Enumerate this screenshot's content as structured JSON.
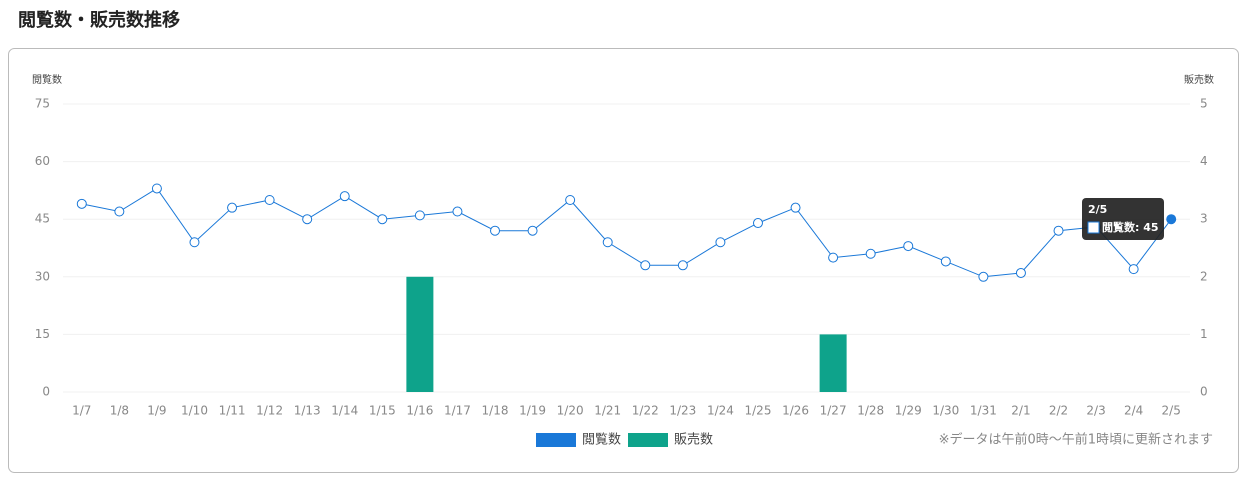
{
  "chart_data": {
    "type": "bar-line",
    "title": "閲覧数・販売数推移",
    "y_label": "閲覧数",
    "y2_label": "販売数",
    "categories": [
      "1/7",
      "1/8",
      "1/9",
      "1/10",
      "1/11",
      "1/12",
      "1/13",
      "1/14",
      "1/15",
      "1/16",
      "1/17",
      "1/18",
      "1/19",
      "1/20",
      "1/21",
      "1/22",
      "1/23",
      "1/24",
      "1/25",
      "1/26",
      "1/27",
      "1/28",
      "1/29",
      "1/30",
      "1/31",
      "2/1",
      "2/2",
      "2/3",
      "2/4",
      "2/5"
    ],
    "series": [
      {
        "name": "閲覧数",
        "type": "line",
        "color": "#1a78d8",
        "values": [
          49,
          47,
          53,
          39,
          48,
          50,
          45,
          51,
          45,
          46,
          47,
          42,
          42,
          50,
          39,
          33,
          33,
          39,
          44,
          48,
          35,
          36,
          38,
          34,
          30,
          31,
          42,
          43,
          32,
          45
        ]
      },
      {
        "name": "販売数",
        "type": "bar",
        "axis": "y2",
        "color": "#0ea38b",
        "values": [
          0,
          0,
          0,
          0,
          0,
          0,
          0,
          0,
          0,
          2,
          0,
          0,
          0,
          0,
          0,
          0,
          0,
          0,
          0,
          0,
          1,
          0,
          0,
          0,
          0,
          0,
          0,
          0,
          0,
          0
        ]
      }
    ],
    "ylim": [
      0,
      75
    ],
    "yticks": [
      0,
      15,
      30,
      45,
      60,
      75
    ],
    "y2lim": [
      0,
      5
    ],
    "y2ticks": [
      0,
      1,
      2,
      3,
      4,
      5
    ],
    "grid": true,
    "legend": "bottom",
    "tooltip": {
      "title": "2/5",
      "text": "閲覧数: 45"
    },
    "note": "※データは午前0時〜午前1時頃に更新されます"
  }
}
